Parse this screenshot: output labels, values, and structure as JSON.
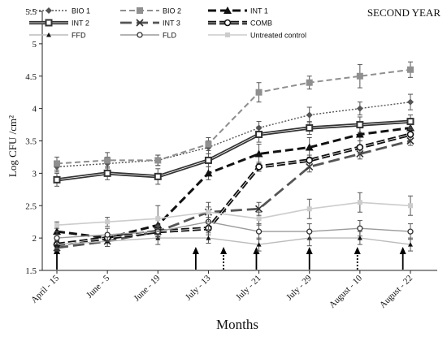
{
  "chart_data": {
    "type": "line",
    "title": "SECOND YEAR",
    "xlabel": "Months",
    "ylabel": "Log CFU /cm²",
    "categories": [
      "April - 15",
      "June - 5",
      "June - 19",
      "July - 13",
      "July - 21",
      "July - 29",
      "August - 10",
      "August - 22"
    ],
    "x_tick_labels": [
      "April - 15",
      "June - 5",
      "June - 19",
      "July - 13",
      "July - 21",
      "July - 29",
      "August - 10",
      "August - 22"
    ],
    "ylim": [
      1.5,
      5.5
    ],
    "yticks": [
      1.5,
      2,
      2.5,
      3,
      3.5,
      4,
      4.5,
      5,
      5.5
    ],
    "ytick_labels": [
      "1.5",
      "2",
      "2.5",
      "3",
      "3.5",
      "4",
      "4.5",
      "5",
      "5.5"
    ],
    "grid": false,
    "legend_position": "top-left",
    "series": [
      {
        "name": "BIO 1",
        "x": [
          0,
          1,
          2,
          3,
          4,
          5,
          6,
          7
        ],
        "values": [
          3.1,
          3.15,
          3.2,
          3.4,
          3.7,
          3.9,
          4.0,
          4.1
        ],
        "errors": [
          0.08,
          0.1,
          0.08,
          0.1,
          0.1,
          0.12,
          0.1,
          0.12
        ],
        "color": "#555555",
        "dash": "2 2",
        "width": 1.4,
        "marker": "diamond"
      },
      {
        "name": "BIO 2",
        "x": [
          0,
          1,
          2,
          3,
          4,
          5,
          6,
          7
        ],
        "values": [
          3.15,
          3.2,
          3.2,
          3.45,
          4.25,
          4.4,
          4.5,
          4.6
        ],
        "errors": [
          0.1,
          0.12,
          0.08,
          0.1,
          0.15,
          0.1,
          0.18,
          0.12
        ],
        "color": "#8f8f8f",
        "dash": "7 4",
        "width": 2,
        "marker": "square"
      },
      {
        "name": "INT 1",
        "x": [
          0,
          1,
          2,
          3,
          4,
          5,
          6,
          7
        ],
        "values": [
          2.1,
          2.0,
          2.2,
          3.0,
          3.3,
          3.4,
          3.6,
          3.7
        ],
        "errors": [
          0.07,
          0.07,
          0.1,
          0.1,
          0.15,
          0.15,
          0.1,
          0.1
        ],
        "color": "#111111",
        "dash": "10 5",
        "width": 3,
        "marker": "triangle"
      },
      {
        "name": "INT 2",
        "x": [
          0,
          1,
          2,
          3,
          4,
          5,
          6,
          7
        ],
        "values": [
          2.9,
          3.0,
          2.95,
          3.2,
          3.6,
          3.7,
          3.75,
          3.8
        ],
        "errors": [
          0.1,
          0.1,
          0.12,
          0.1,
          0.12,
          0.1,
          0.12,
          0.1
        ],
        "color": "#333333",
        "dash": "",
        "width": 2.2,
        "marker": "square-open",
        "double": true
      },
      {
        "name": "INT 3",
        "x": [
          0,
          1,
          2,
          3,
          4,
          5,
          6,
          7
        ],
        "values": [
          1.85,
          1.95,
          2.1,
          2.4,
          2.45,
          3.1,
          3.3,
          3.5
        ],
        "errors": [
          0.05,
          0.08,
          0.07,
          0.08,
          0.1,
          0.08,
          0.08,
          0.07
        ],
        "color": "#555555",
        "dash": "14 6",
        "width": 2.8,
        "marker": "x"
      },
      {
        "name": "COMB",
        "x": [
          0,
          1,
          2,
          3,
          4,
          5,
          6,
          7
        ],
        "values": [
          1.9,
          2.0,
          2.1,
          2.15,
          3.1,
          3.2,
          3.4,
          3.6
        ],
        "errors": [
          0.05,
          0.06,
          0.08,
          0.1,
          0.07,
          0.08,
          0.1,
          0.08
        ],
        "color": "#111111",
        "dash": "10 4",
        "width": 2.4,
        "marker": "circle",
        "double": true
      },
      {
        "name": "FFD",
        "x": [
          0,
          1,
          2,
          3,
          4,
          5,
          6,
          7
        ],
        "values": [
          1.9,
          1.95,
          2.0,
          2.0,
          1.9,
          2.0,
          2.0,
          1.9
        ],
        "errors": [
          0.06,
          0.08,
          0.1,
          0.08,
          0.1,
          0.12,
          0.1,
          0.1
        ],
        "color": "#bbbbbb",
        "dash": "",
        "width": 1.4,
        "marker": "triangle-small"
      },
      {
        "name": "FLD",
        "x": [
          0,
          1,
          2,
          3,
          4,
          5,
          6,
          7
        ],
        "values": [
          2.0,
          2.05,
          2.1,
          2.25,
          2.1,
          2.1,
          2.15,
          2.1
        ],
        "errors": [
          0.1,
          0.1,
          0.1,
          0.12,
          0.12,
          0.12,
          0.12,
          0.12
        ],
        "color": "#9a9a9a",
        "dash": "",
        "width": 1.4,
        "marker": "circle-open"
      },
      {
        "name": "Untreated control",
        "x": [
          0,
          1,
          2,
          3,
          4,
          5,
          6,
          7
        ],
        "values": [
          2.2,
          2.25,
          2.3,
          2.4,
          2.3,
          2.45,
          2.55,
          2.5
        ],
        "errors": [
          0.05,
          0.07,
          0.2,
          0.15,
          0.1,
          0.15,
          0.15,
          0.15
        ],
        "color": "#cccccc",
        "dash": "",
        "width": 1.6,
        "marker": "square-light"
      }
    ],
    "application_arrows": [
      {
        "x": 0,
        "style": "solid"
      },
      {
        "x": 2.75,
        "style": "solid"
      },
      {
        "x": 3.3,
        "style": "dotted"
      },
      {
        "x": 3.95,
        "style": "solid"
      },
      {
        "x": 5.0,
        "style": "solid"
      },
      {
        "x": 5.95,
        "style": "dotted"
      },
      {
        "x": 6.85,
        "style": "solid"
      }
    ]
  }
}
